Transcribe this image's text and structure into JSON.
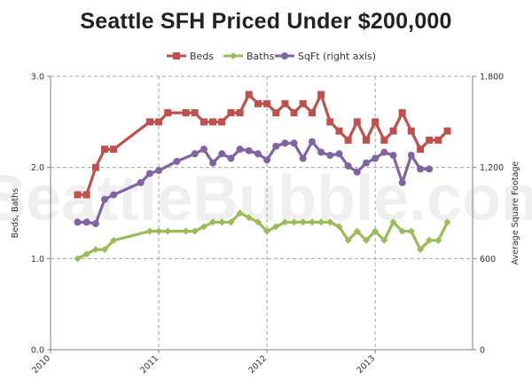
{
  "chart_data": {
    "type": "line",
    "title": "Seattle SFH Priced Under $200,000",
    "watermark": "SeattleBubble.com",
    "ylabel": "Beds, Baths",
    "y2label": "Average Square Footage",
    "ylim": [
      0,
      3
    ],
    "y2lim": [
      0,
      1800
    ],
    "yticks": [
      "0.0",
      "1.0",
      "2.0",
      "3.0"
    ],
    "y2ticks": [
      "0",
      "600",
      "1,200",
      "1,800"
    ],
    "xlim": [
      2010,
      2013.9
    ],
    "xticks": [
      {
        "label": "2010",
        "x": 2010
      },
      {
        "label": "2011",
        "x": 2011
      },
      {
        "label": "2012",
        "x": 2012
      },
      {
        "label": "2013",
        "x": 2013
      }
    ],
    "grid": true,
    "legend_position": "top",
    "series": [
      {
        "name": "Beds",
        "axis": "left",
        "color": "#c0504d",
        "marker": "square",
        "points": [
          [
            2010.25,
            1.7
          ],
          [
            2010.333,
            1.7
          ],
          [
            2010.417,
            2.0
          ],
          [
            2010.5,
            2.2
          ],
          [
            2010.583,
            2.2
          ],
          [
            2010.917,
            2.5
          ],
          [
            2011.0,
            2.5
          ],
          [
            2011.083,
            2.6
          ],
          [
            2011.25,
            2.6
          ],
          [
            2011.333,
            2.6
          ],
          [
            2011.417,
            2.5
          ],
          [
            2011.5,
            2.5
          ],
          [
            2011.583,
            2.5
          ],
          [
            2011.667,
            2.6
          ],
          [
            2011.75,
            2.6
          ],
          [
            2011.833,
            2.8
          ],
          [
            2011.917,
            2.7
          ],
          [
            2012.0,
            2.7
          ],
          [
            2012.083,
            2.6
          ],
          [
            2012.167,
            2.7
          ],
          [
            2012.25,
            2.6
          ],
          [
            2012.333,
            2.7
          ],
          [
            2012.417,
            2.6
          ],
          [
            2012.5,
            2.8
          ],
          [
            2012.583,
            2.5
          ],
          [
            2012.667,
            2.4
          ],
          [
            2012.75,
            2.3
          ],
          [
            2012.833,
            2.5
          ],
          [
            2012.917,
            2.3
          ],
          [
            2013.0,
            2.5
          ],
          [
            2013.083,
            2.3
          ],
          [
            2013.167,
            2.4
          ],
          [
            2013.25,
            2.6
          ],
          [
            2013.333,
            2.4
          ],
          [
            2013.417,
            2.2
          ],
          [
            2013.5,
            2.3
          ],
          [
            2013.583,
            2.3
          ],
          [
            2013.667,
            2.4
          ]
        ]
      },
      {
        "name": "Baths",
        "axis": "left",
        "color": "#9bbb59",
        "marker": "diamond",
        "points": [
          [
            2010.25,
            1.0
          ],
          [
            2010.333,
            1.05
          ],
          [
            2010.417,
            1.1
          ],
          [
            2010.5,
            1.1
          ],
          [
            2010.583,
            1.2
          ],
          [
            2010.917,
            1.3
          ],
          [
            2011.0,
            1.3
          ],
          [
            2011.083,
            1.3
          ],
          [
            2011.25,
            1.3
          ],
          [
            2011.333,
            1.3
          ],
          [
            2011.417,
            1.35
          ],
          [
            2011.5,
            1.4
          ],
          [
            2011.583,
            1.4
          ],
          [
            2011.667,
            1.4
          ],
          [
            2011.75,
            1.5
          ],
          [
            2011.833,
            1.45
          ],
          [
            2011.917,
            1.4
          ],
          [
            2012.0,
            1.3
          ],
          [
            2012.083,
            1.35
          ],
          [
            2012.167,
            1.4
          ],
          [
            2012.25,
            1.4
          ],
          [
            2012.333,
            1.4
          ],
          [
            2012.417,
            1.4
          ],
          [
            2012.5,
            1.4
          ],
          [
            2012.583,
            1.4
          ],
          [
            2012.667,
            1.35
          ],
          [
            2012.75,
            1.2
          ],
          [
            2012.833,
            1.3
          ],
          [
            2012.917,
            1.2
          ],
          [
            2013.0,
            1.3
          ],
          [
            2013.083,
            1.2
          ],
          [
            2013.167,
            1.4
          ],
          [
            2013.25,
            1.3
          ],
          [
            2013.333,
            1.3
          ],
          [
            2013.417,
            1.1
          ],
          [
            2013.5,
            1.2
          ],
          [
            2013.583,
            1.2
          ],
          [
            2013.667,
            1.4
          ]
        ]
      },
      {
        "name": "SqFt (right axis)",
        "axis": "right",
        "color": "#8064a2",
        "marker": "circle",
        "points": [
          [
            2010.25,
            840
          ],
          [
            2010.333,
            840
          ],
          [
            2010.417,
            830
          ],
          [
            2010.5,
            990
          ],
          [
            2010.583,
            1020
          ],
          [
            2010.833,
            1100
          ],
          [
            2010.917,
            1160
          ],
          [
            2011.0,
            1180
          ],
          [
            2011.167,
            1240
          ],
          [
            2011.333,
            1290
          ],
          [
            2011.417,
            1320
          ],
          [
            2011.5,
            1230
          ],
          [
            2011.583,
            1290
          ],
          [
            2011.667,
            1260
          ],
          [
            2011.75,
            1320
          ],
          [
            2011.833,
            1310
          ],
          [
            2011.917,
            1290
          ],
          [
            2012.0,
            1250
          ],
          [
            2012.083,
            1340
          ],
          [
            2012.167,
            1360
          ],
          [
            2012.25,
            1360
          ],
          [
            2012.333,
            1260
          ],
          [
            2012.417,
            1370
          ],
          [
            2012.5,
            1300
          ],
          [
            2012.583,
            1280
          ],
          [
            2012.667,
            1290
          ],
          [
            2012.75,
            1210
          ],
          [
            2012.833,
            1170
          ],
          [
            2012.917,
            1230
          ],
          [
            2013.0,
            1260
          ],
          [
            2013.083,
            1300
          ],
          [
            2013.167,
            1280
          ],
          [
            2013.25,
            1100
          ],
          [
            2013.333,
            1280
          ],
          [
            2013.417,
            1190
          ],
          [
            2013.5,
            1190
          ]
        ]
      }
    ]
  }
}
